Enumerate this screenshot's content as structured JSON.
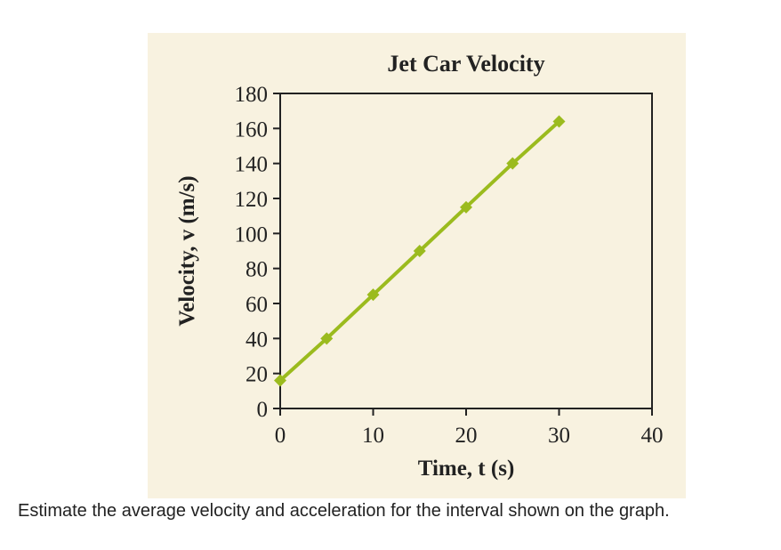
{
  "chart_data": {
    "type": "line",
    "title": "Jet Car Velocity",
    "xlabel": "Time, t (s)",
    "ylabel": "Velocity, v (m/s)",
    "xlim": [
      0,
      40
    ],
    "ylim": [
      0,
      180
    ],
    "xticks": [
      0,
      10,
      20,
      30,
      40
    ],
    "yticks": [
      0,
      20,
      40,
      60,
      80,
      100,
      120,
      140,
      160,
      180
    ],
    "grid": false,
    "x": [
      0,
      5,
      10,
      15,
      20,
      25,
      30
    ],
    "series": [
      {
        "values": [
          16,
          40,
          65,
          90,
          115,
          140,
          164
        ],
        "color": "#9bbb1e",
        "marker": "diamond"
      }
    ],
    "background": "#f8f2e0"
  },
  "question": "Estimate the average velocity and acceleration for the interval shown on the graph."
}
